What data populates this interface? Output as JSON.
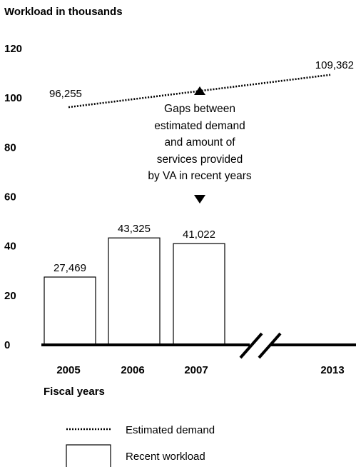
{
  "chart_data": {
    "type": "bar",
    "ylabel": "Workload in thousands",
    "xlabel": "Fiscal years",
    "ylim": [
      0,
      120
    ],
    "y_ticks": [
      "120",
      "100",
      "80",
      "60",
      "40",
      "20",
      "0"
    ],
    "y_tick_values": [
      120,
      100,
      80,
      60,
      40,
      20,
      0
    ],
    "x_tick_labels": [
      "2005",
      "2006",
      "2007",
      "2013"
    ],
    "axis_break": "between 2007 and 2013",
    "series": [
      {
        "name": "Recent workload",
        "kind": "bar",
        "categories": [
          "2005",
          "2006",
          "2007"
        ],
        "values": [
          27.469,
          43.325,
          41.022
        ],
        "value_labels": [
          "27,469",
          "43,325",
          "41,022"
        ]
      },
      {
        "name": "Estimated demand",
        "kind": "dotted-line",
        "x": [
          "2005",
          "2013"
        ],
        "values": [
          96.255,
          109.362
        ],
        "value_labels": [
          "96,255",
          "109,362"
        ]
      }
    ],
    "annotation": {
      "lines": [
        "Gaps between",
        "estimated demand",
        "and amount of",
        "services provided",
        "by VA in recent years"
      ],
      "arrows": "up-and-down"
    },
    "legend": {
      "placement": "bottom-left",
      "entries": [
        {
          "label": "Estimated demand",
          "symbol": "dotted-line"
        },
        {
          "label": "Recent workload",
          "symbol": "open-box"
        }
      ]
    },
    "colors": {
      "bar_fill": "#ffffff",
      "stroke": "#000000"
    }
  }
}
